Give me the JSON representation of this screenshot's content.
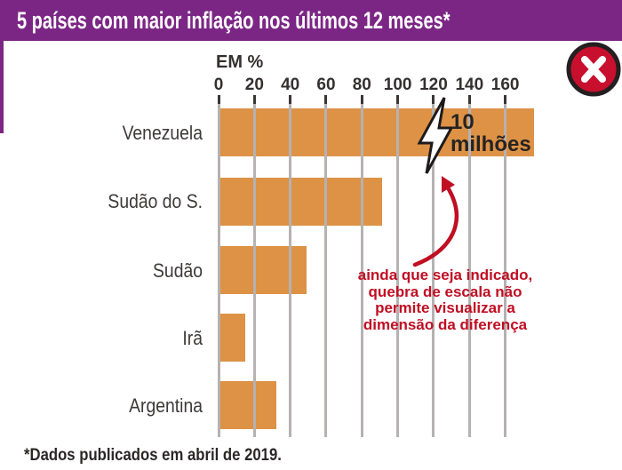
{
  "banner": {
    "title": "5 países com maior inflação nos últimos 12 meses*",
    "bg_color": "#7B2685",
    "text_color": "#FFFFFF"
  },
  "wrong_indicator": {
    "symbol": "X",
    "meaning": "exemplo errado",
    "circle_color": "#C8102E",
    "ring_color": "#241F20"
  },
  "chart_data": {
    "type": "bar",
    "orientation": "horizontal",
    "title": "5 países com maior inflação nos últimos 12 meses*",
    "unit_label": "EM %",
    "x_ticks": [
      0,
      20,
      40,
      60,
      80,
      100,
      120,
      140,
      160
    ],
    "x_axis_drawn_max": 176,
    "categories": [
      "Venezuela",
      "Sudão do S.",
      "Sudão",
      "Irã",
      "Argentina"
    ],
    "values_pct": [
      10000000,
      91,
      49,
      15,
      32
    ],
    "drawn_bar_lengths_pct": [
      176,
      91,
      49,
      15,
      32
    ],
    "scale_break": {
      "category": "Venezuela",
      "at_pct": 120,
      "value_label_line1": "10",
      "value_label_line2": "milhões"
    },
    "annotation": {
      "lines": [
        "ainda que seja indicado,",
        "quebra de escala não",
        "permite visualizar a",
        "dimensão da diferença"
      ],
      "color": "#C00E23"
    },
    "bar_color": "#DD9245",
    "gridlines": true,
    "legend": false
  },
  "footnote": "*Dados publicados em abril de 2019."
}
